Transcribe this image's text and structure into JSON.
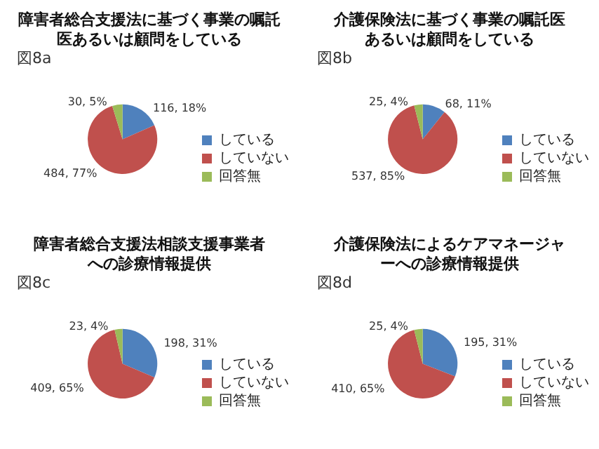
{
  "chart_data": [
    {
      "type": "pie",
      "title": "障害者総合支援法に基づく事業の嘱託医あるいは顧問をしている",
      "annotations": [
        "図8a"
      ],
      "categories": [
        "している",
        "していない",
        "回答無"
      ],
      "values": [
        116,
        484,
        30
      ],
      "value_labels": [
        "116, 18%",
        "484, 77%",
        "30, 5%"
      ],
      "colors": [
        "#4f81bd",
        "#c0504d",
        "#9bbb59"
      ],
      "legend": "right"
    },
    {
      "type": "pie",
      "title": "介護保険法に基づく事業の嘱託医あるいは顧問をしている",
      "annotations": [
        "図8b"
      ],
      "categories": [
        "している",
        "していない",
        "回答無"
      ],
      "values": [
        68,
        537,
        25
      ],
      "value_labels": [
        "68, 11%",
        "537, 85%",
        "25, 4%"
      ],
      "colors": [
        "#4f81bd",
        "#c0504d",
        "#9bbb59"
      ],
      "legend": "right"
    },
    {
      "type": "pie",
      "title": "障害者総合支援法相談支援事業者への診療情報提供",
      "annotations": [
        "図8c"
      ],
      "categories": [
        "している",
        "していない",
        "回答無"
      ],
      "values": [
        198,
        409,
        23
      ],
      "value_labels": [
        "198, 31%",
        "409, 65%",
        "23, 4%"
      ],
      "colors": [
        "#4f81bd",
        "#c0504d",
        "#9bbb59"
      ],
      "legend": "right"
    },
    {
      "type": "pie",
      "title": "介護保険法によるケアマネージャーへの診療情報提供",
      "annotations": [
        "図8d"
      ],
      "categories": [
        "している",
        "していない",
        "回答無"
      ],
      "values": [
        195,
        410,
        25
      ],
      "value_labels": [
        "195, 31%",
        "410, 65%",
        "25, 4%"
      ],
      "colors": [
        "#4f81bd",
        "#c0504d",
        "#9bbb59"
      ],
      "legend": "right"
    }
  ]
}
